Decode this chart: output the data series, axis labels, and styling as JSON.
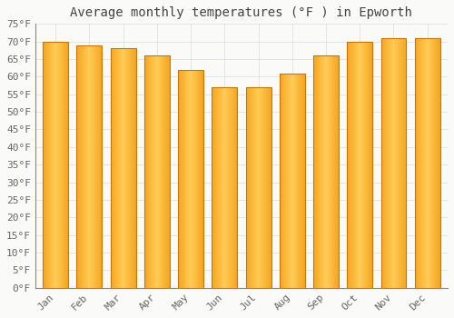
{
  "title": "Average monthly temperatures (°F ) in Epworth",
  "months": [
    "Jan",
    "Feb",
    "Mar",
    "Apr",
    "May",
    "Jun",
    "Jul",
    "Aug",
    "Sep",
    "Oct",
    "Nov",
    "Dec"
  ],
  "values": [
    70,
    69,
    68,
    66,
    62,
    57,
    57,
    61,
    66,
    70,
    71,
    71
  ],
  "bar_color_left": "#F5A623",
  "bar_color_center": "#FFCC55",
  "bar_color_right": "#F5A623",
  "bar_edge_color": "#C87800",
  "ylim": [
    0,
    75
  ],
  "yticks": [
    0,
    5,
    10,
    15,
    20,
    25,
    30,
    35,
    40,
    45,
    50,
    55,
    60,
    65,
    70,
    75
  ],
  "ytick_labels": [
    "0°F",
    "5°F",
    "10°F",
    "15°F",
    "20°F",
    "25°F",
    "30°F",
    "35°F",
    "40°F",
    "45°F",
    "50°F",
    "55°F",
    "60°F",
    "65°F",
    "70°F",
    "75°F"
  ],
  "background_color": "#fafaf8",
  "plot_bg_color": "#fafaf8",
  "grid_color": "#e0e0e0",
  "title_fontsize": 10,
  "tick_fontsize": 8,
  "bar_width": 0.75,
  "tick_color": "#666666",
  "title_color": "#444444"
}
